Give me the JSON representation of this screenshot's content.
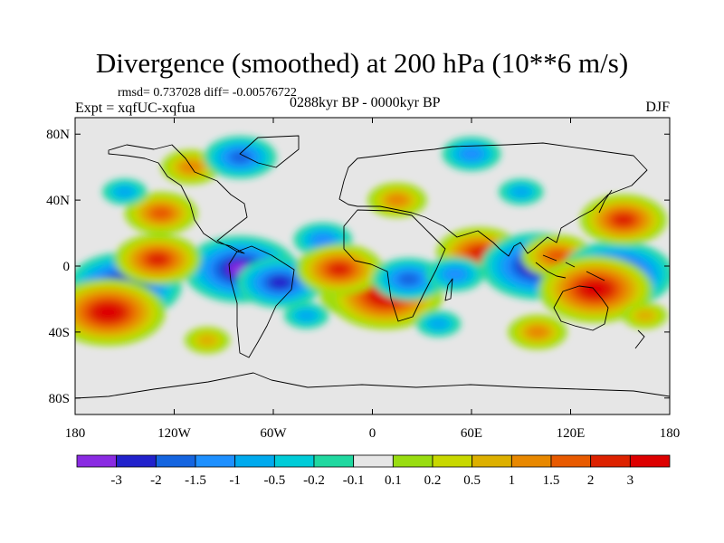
{
  "chart_data": {
    "type": "heatmap",
    "title": "Divergence (smoothed) at 200 hPa (10**6 m/s)",
    "stats_text": "rmsd= 0.737028 diff= -0.00576722",
    "experiment_text": "Expt = xqfUC-xqfua",
    "period_text": "0288kyr BP - 0000kyr BP",
    "season": "DJF",
    "x_range": [
      -180,
      180
    ],
    "y_range": [
      -90,
      90
    ],
    "x_ticks": [
      {
        "value": -180,
        "label": "180"
      },
      {
        "value": -120,
        "label": "120W"
      },
      {
        "value": -60,
        "label": "60W"
      },
      {
        "value": 0,
        "label": "0"
      },
      {
        "value": 60,
        "label": "60E"
      },
      {
        "value": 120,
        "label": "120E"
      },
      {
        "value": 180,
        "label": "180"
      }
    ],
    "y_ticks": [
      {
        "value": 80,
        "label": "80N"
      },
      {
        "value": 40,
        "label": "40N"
      },
      {
        "value": 0,
        "label": "0"
      },
      {
        "value": -40,
        "label": "40S"
      },
      {
        "value": -80,
        "label": "80S"
      }
    ],
    "colorbar": {
      "colors": [
        "#8a2be2",
        "#2222cc",
        "#1565e0",
        "#1e90ff",
        "#00aaee",
        "#00ccd8",
        "#20d8a0",
        "#e6e6e6",
        "#99dd11",
        "#c8d800",
        "#ddb000",
        "#e88800",
        "#e85a00",
        "#dd2200",
        "#dd0000"
      ],
      "labels": [
        "-3",
        "-2",
        "-1.5",
        "-1",
        "-0.5",
        "-0.2",
        "-0.1",
        "0.1",
        "0.2",
        "0.5",
        "1",
        "1.5",
        "2",
        "3"
      ]
    },
    "anomalies": [
      {
        "lon": -150,
        "lat": -12,
        "value": -3
      },
      {
        "lon": -80,
        "lat": -2,
        "value": -3
      },
      {
        "lon": -56,
        "lat": -10,
        "value": -2
      },
      {
        "lon": -160,
        "lat": -28,
        "value": 3
      },
      {
        "lon": -130,
        "lat": 4,
        "value": 2
      },
      {
        "lon": -128,
        "lat": 32,
        "value": 1.5
      },
      {
        "lon": -110,
        "lat": 60,
        "value": 1
      },
      {
        "lon": -80,
        "lat": 66,
        "value": -1.5
      },
      {
        "lon": -30,
        "lat": 16,
        "value": -1
      },
      {
        "lon": -10,
        "lat": -18,
        "value": 1.5
      },
      {
        "lon": 8,
        "lat": -18,
        "value": 3
      },
      {
        "lon": -20,
        "lat": -2,
        "value": 2
      },
      {
        "lon": 22,
        "lat": -8,
        "value": -1.5
      },
      {
        "lon": 65,
        "lat": 8,
        "value": 2
      },
      {
        "lon": 50,
        "lat": -5,
        "value": -1
      },
      {
        "lon": 100,
        "lat": 0,
        "value": -3
      },
      {
        "lon": 112,
        "lat": 6,
        "value": 1.5
      },
      {
        "lon": 148,
        "lat": -5,
        "value": -3
      },
      {
        "lon": 135,
        "lat": -14,
        "value": 3
      },
      {
        "lon": 152,
        "lat": 28,
        "value": 2
      },
      {
        "lon": 60,
        "lat": 68,
        "value": -1
      },
      {
        "lon": 15,
        "lat": 40,
        "value": 1
      },
      {
        "lon": -100,
        "lat": -45,
        "value": 0.5
      },
      {
        "lon": -150,
        "lat": 45,
        "value": -0.5
      },
      {
        "lon": 90,
        "lat": 45,
        "value": -0.5
      },
      {
        "lon": 100,
        "lat": -40,
        "value": 1
      },
      {
        "lon": 40,
        "lat": -35,
        "value": -0.5
      },
      {
        "lon": -40,
        "lat": -30,
        "value": -0.5
      },
      {
        "lon": 165,
        "lat": -30,
        "value": 0.5
      }
    ]
  }
}
